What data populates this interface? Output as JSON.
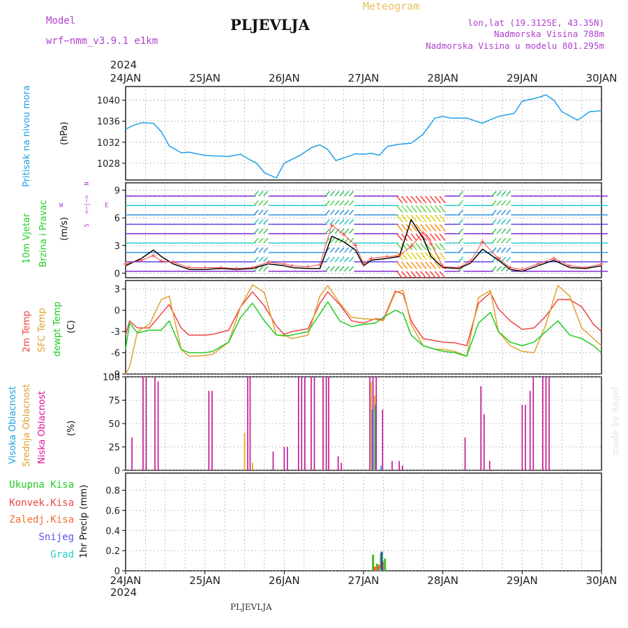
{
  "header": {
    "title": "PLJEVLJA",
    "model_label": "Model",
    "model_name": "wrf−nmm_v3.9.1  e1km",
    "meteogram": "Meteogram",
    "lonlat": "lon,lat (19.3125E, 43.35N)",
    "elevation": "Nadmorska Visina 788m",
    "model_elevation": "Nadmorska Visina u modelu 801.295m",
    "year_top": "2024",
    "year_bottom": "2024",
    "footer": "PLJEVLJA",
    "credit": "made by Angel"
  },
  "colors": {
    "pressure": "#1ea0e6",
    "temp2m": "#ee4444",
    "sfc": "#e0a030",
    "dewpt": "#22cc22",
    "high_cloud": "#1e90d0",
    "mid_cloud": "#e0a000",
    "low_cloud": "#c01090",
    "wind_speed": "#000000",
    "gust": "#ff4444",
    "purple_text": "#b040d0",
    "gold_text": "#e8c060"
  },
  "x_axis": {
    "ticks": [
      "24JAN",
      "25JAN",
      "26JAN",
      "27JAN",
      "28JAN",
      "29JAN",
      "30JAN"
    ]
  },
  "panels": {
    "pressure": {
      "label": "Pritisak na nivou mora",
      "unit": "(hPa)"
    },
    "wind": {
      "label1": "10m Vjetar",
      "label2": "Brzina i Pravac",
      "unit": "(m/s)",
      "compass_n": "N",
      "compass_w": "W",
      "compass_e": "E",
      "compass_s": "S",
      "compass_dash": "<−|−>"
    },
    "temp": {
      "label1": "2m Temp",
      "label2": "SFC Temp",
      "label3": "dewpt Temp",
      "unit": "(C)"
    },
    "cloud": {
      "label1": "Visoka Oblacnost",
      "label2": "Srednja Oblacnost",
      "label3": "Niska Oblacnost",
      "unit": "(%)"
    },
    "precip": {
      "label1": "Ukupna Kisa",
      "label2": "Konvek.Kisa",
      "label3": "Zaledj.Kisa",
      "label4": "Snijeg",
      "label5": "Grad",
      "unit": "1hr Precip (mm)"
    }
  },
  "chart_data": [
    {
      "type": "line",
      "panel": "pressure",
      "ylabel": "(hPa)",
      "ylim": [
        1024.8,
        1042.6
      ],
      "yticks": [
        1028,
        1032,
        1036,
        1040
      ],
      "x_days": [
        0,
        0.1,
        0.2,
        0.35,
        0.45,
        0.55,
        0.7,
        0.8,
        1.0,
        1.1,
        1.3,
        1.45,
        1.55,
        1.65,
        1.75,
        1.9,
        2.0,
        2.2,
        2.35,
        2.45,
        2.55,
        2.65,
        2.75,
        2.9,
        3.0,
        3.1,
        3.2,
        3.3,
        3.45,
        3.6,
        3.75,
        3.9,
        4.0,
        4.1,
        4.3,
        4.5,
        4.6,
        4.7,
        4.9,
        5.0,
        5.2,
        5.3,
        5.4,
        5.5,
        5.7,
        5.85,
        6.0
      ],
      "series": [
        {
          "values": [
            1034.5,
            1035.2,
            1035.7,
            1035.6,
            1034.0,
            1031.3,
            1030.0,
            1030.1,
            1029.5,
            1029.4,
            1029.3,
            1029.7,
            1028.8,
            1028.0,
            1026.2,
            1025.2,
            1028.0,
            1029.5,
            1031.0,
            1031.5,
            1030.6,
            1028.5,
            1029.0,
            1029.8,
            1029.7,
            1029.9,
            1029.5,
            1031.2,
            1031.6,
            1031.8,
            1033.5,
            1036.6,
            1036.9,
            1036.6,
            1036.6,
            1035.6,
            1036.3,
            1036.9,
            1037.5,
            1039.8,
            1040.5,
            1041.0,
            1040.0,
            1037.8,
            1036.2,
            1037.8,
            1038.0
          ]
        }
      ]
    },
    {
      "type": "line",
      "panel": "wind",
      "ylabel": "(m/s)",
      "ylim": [
        -0.5,
        9.8
      ],
      "yticks": [
        0,
        3,
        6,
        9
      ],
      "x_days": [
        0,
        0.2,
        0.35,
        0.45,
        0.6,
        0.8,
        1.0,
        1.2,
        1.4,
        1.6,
        1.8,
        2.0,
        2.1,
        2.3,
        2.45,
        2.6,
        2.75,
        2.9,
        3.0,
        3.1,
        3.3,
        3.45,
        3.6,
        3.75,
        3.85,
        4.0,
        4.2,
        4.35,
        4.5,
        4.7,
        4.85,
        5.0,
        5.2,
        5.4,
        5.6,
        5.8,
        6.0
      ],
      "series": [
        {
          "name_key": "wind_speed",
          "values": [
            0.8,
            1.6,
            2.5,
            1.8,
            1.0,
            0.4,
            0.4,
            0.5,
            0.4,
            0.5,
            1.0,
            0.8,
            0.6,
            0.5,
            0.5,
            4.0,
            3.4,
            2.5,
            0.8,
            1.4,
            1.6,
            1.8,
            5.8,
            3.8,
            1.8,
            0.6,
            0.5,
            1.1,
            2.6,
            1.4,
            0.4,
            0.2,
            0.8,
            1.4,
            0.6,
            0.5,
            0.8
          ]
        },
        {
          "name_key": "gust",
          "values": [
            1.0,
            1.4,
            1.9,
            1.3,
            1.2,
            0.6,
            0.6,
            0.6,
            0.5,
            0.6,
            1.2,
            1.0,
            0.8,
            0.7,
            0.9,
            5.2,
            4.2,
            3.0,
            1.0,
            1.6,
            1.8,
            1.9,
            2.9,
            4.4,
            3.2,
            0.7,
            0.6,
            1.3,
            3.4,
            1.6,
            0.6,
            0.4,
            1.0,
            1.6,
            0.8,
            0.6,
            1.0
          ]
        }
      ]
    },
    {
      "type": "line",
      "panel": "temperature",
      "ylabel": "(C)",
      "ylim": [
        -9,
        4.2
      ],
      "yticks": [
        -9,
        -6,
        -3,
        0,
        3
      ],
      "x_days": [
        0,
        0.05,
        0.15,
        0.3,
        0.45,
        0.55,
        0.7,
        0.8,
        1.0,
        1.1,
        1.3,
        1.45,
        1.6,
        1.75,
        1.9,
        2.0,
        2.1,
        2.3,
        2.45,
        2.55,
        2.7,
        2.85,
        3.0,
        3.15,
        3.25,
        3.4,
        3.5,
        3.6,
        3.75,
        3.9,
        4.0,
        4.15,
        4.3,
        4.45,
        4.6,
        4.7,
        4.85,
        5.0,
        5.15,
        5.3,
        5.45,
        5.6,
        5.75,
        5.9,
        6.0
      ],
      "series": [
        {
          "name_key": "temp2m",
          "values": [
            -3.5,
            -1.5,
            -2.5,
            -2.5,
            -0.5,
            0.8,
            -2.5,
            -3.5,
            -3.5,
            -3.4,
            -2.8,
            0.5,
            2.6,
            0.6,
            -2.2,
            -3.4,
            -3.0,
            -2.6,
            1.0,
            2.6,
            0.8,
            -1.5,
            -1.8,
            -1.2,
            -1.3,
            2.7,
            2.3,
            -1.5,
            -4.0,
            -4.3,
            -4.5,
            -4.6,
            -5.0,
            1.0,
            2.5,
            0.2,
            -1.5,
            -2.7,
            -2.5,
            -0.8,
            1.5,
            1.5,
            0.5,
            -2.0,
            -3.0
          ]
        },
        {
          "name_key": "sfc",
          "values": [
            -9.0,
            -8.0,
            -3.0,
            -2.0,
            1.5,
            2.0,
            -5.5,
            -6.5,
            -6.4,
            -6.2,
            -4.5,
            0.5,
            3.6,
            2.5,
            -3.5,
            -3.5,
            -4.0,
            -3.5,
            2.0,
            3.5,
            1.0,
            -1.0,
            -1.2,
            -1.3,
            -1.5,
            2.5,
            2.8,
            -2.0,
            -5.0,
            -5.5,
            -5.5,
            -5.8,
            -6.5,
            1.8,
            2.8,
            -3.0,
            -5.0,
            -5.8,
            -6.0,
            -2.0,
            3.5,
            2.0,
            -2.5,
            -4.0,
            -5.0
          ]
        },
        {
          "name_key": "dewpt",
          "values": [
            -5.5,
            -1.8,
            -3.2,
            -2.8,
            -2.8,
            -1.5,
            -5.5,
            -6.0,
            -6.0,
            -5.8,
            -4.5,
            -1.0,
            1.0,
            -1.5,
            -3.5,
            -3.6,
            -3.5,
            -3.0,
            -0.5,
            1.2,
            -1.5,
            -2.3,
            -2.0,
            -1.8,
            -1.0,
            0.0,
            -0.5,
            -3.5,
            -5.0,
            -5.5,
            -5.8,
            -6.0,
            -6.5,
            -1.8,
            -0.3,
            -3.0,
            -4.5,
            -5.0,
            -4.5,
            -3.0,
            -1.5,
            -3.5,
            -4.0,
            -5.0,
            -6.0
          ]
        }
      ]
    },
    {
      "type": "bar",
      "panel": "cloud",
      "ylabel": "(%)",
      "ylim": [
        0,
        100
      ],
      "yticks": [
        0,
        25,
        50,
        75,
        100
      ],
      "series": [
        {
          "name_key": "low_cloud",
          "x_days": [
            0.08,
            0.22,
            0.26,
            0.37,
            0.41,
            1.05,
            1.09,
            1.54,
            1.57,
            1.86,
            2.0,
            2.04,
            2.18,
            2.22,
            2.26,
            2.34,
            2.38,
            2.49,
            2.53,
            2.56,
            2.68,
            2.72,
            3.08,
            3.12,
            3.16,
            3.24,
            3.36,
            3.45,
            3.49,
            4.28,
            4.48,
            4.52,
            4.59,
            5.0,
            5.04,
            5.1,
            5.14,
            5.26,
            5.3,
            5.34
          ],
          "values": [
            35,
            100,
            100,
            100,
            95,
            85,
            85,
            100,
            100,
            20,
            25,
            25,
            100,
            100,
            100,
            100,
            100,
            100,
            100,
            100,
            15,
            8,
            100,
            100,
            100,
            65,
            10,
            10,
            5,
            35,
            90,
            60,
            10,
            70,
            70,
            85,
            100,
            100,
            100,
            100
          ]
        },
        {
          "name_key": "mid_cloud",
          "x_days": [
            1.5,
            1.6,
            3.1,
            3.14
          ],
          "values": [
            40,
            8,
            95,
            80
          ]
        },
        {
          "name_key": "high_cloud",
          "x_days": [
            3.11,
            3.15,
            3.22
          ],
          "values": [
            65,
            70,
            5
          ]
        }
      ]
    },
    {
      "type": "bar",
      "panel": "precip",
      "ylabel": "1hr Precip (mm)",
      "ylim": [
        0,
        0.97
      ],
      "yticks": [
        0,
        0.2,
        0.4,
        0.6,
        0.8
      ],
      "series": [
        {
          "name_key": "total",
          "x_days": [
            3.12,
            3.17,
            3.22,
            3.27
          ],
          "values": [
            0.16,
            0.07,
            0.17,
            0.12
          ]
        },
        {
          "name_key": "convective",
          "x_days": [
            3.14,
            3.19,
            3.24
          ],
          "values": [
            0.04,
            0.05,
            0.09
          ]
        },
        {
          "name_key": "freezing",
          "x_days": [
            3.15,
            3.2
          ],
          "values": [
            0.04,
            0.06
          ]
        },
        {
          "name_key": "snow",
          "x_days": [
            3.23
          ],
          "values": [
            0.19
          ]
        },
        {
          "name_key": "hail",
          "x_days": [
            3.21
          ],
          "values": [
            0.02
          ]
        }
      ]
    }
  ]
}
